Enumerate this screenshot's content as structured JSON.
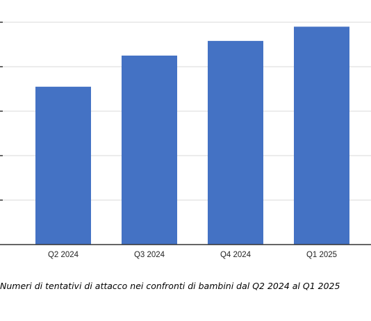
{
  "chart_data": {
    "type": "bar",
    "categories": [
      "Q2 2024",
      "Q3 2024",
      "Q4 2024",
      "Q1 2025"
    ],
    "values": [
      3.55,
      4.25,
      4.58,
      4.9
    ],
    "ylim": [
      0,
      5
    ],
    "grid": true,
    "legend": "none",
    "bar_color": "#4472C4",
    "gridline_color": "#d9d9d9"
  },
  "caption": "Numeri di tentativi di attacco nei confronti di bambini dal Q2 2024 al Q1 2025"
}
